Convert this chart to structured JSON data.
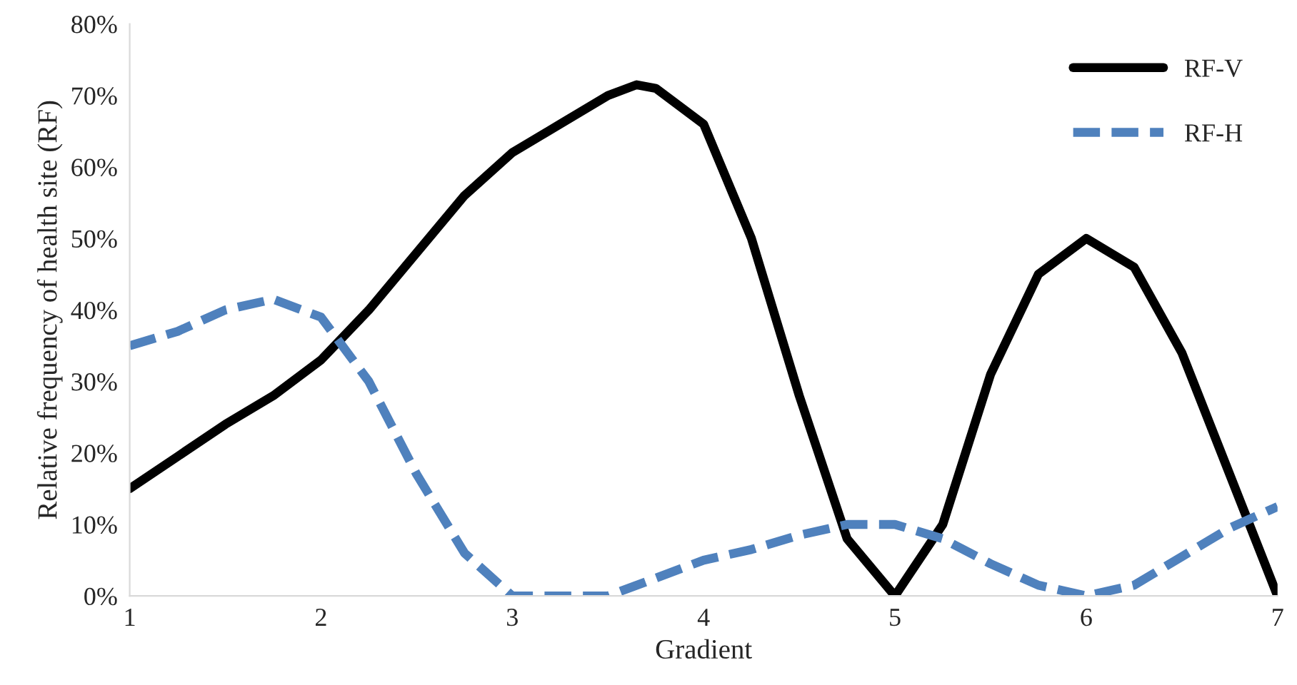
{
  "chart_data": {
    "type": "line",
    "xlabel": "Gradient",
    "ylabel": "Relative frequency of health site (RF)",
    "xlim": [
      1,
      7
    ],
    "xticks": [
      1,
      2,
      3,
      4,
      5,
      6,
      7
    ],
    "ylim": [
      0,
      80
    ],
    "yticks": [
      {
        "value": 0,
        "label": "0%"
      },
      {
        "value": 10,
        "label": "10%"
      },
      {
        "value": 20,
        "label": "20%"
      },
      {
        "value": 30,
        "label": "30%"
      },
      {
        "value": 40,
        "label": "40%"
      },
      {
        "value": 50,
        "label": "50%"
      },
      {
        "value": 60,
        "label": "60%"
      },
      {
        "value": 70,
        "label": "70%"
      },
      {
        "value": 80,
        "label": "80%"
      }
    ],
    "grid": false,
    "legend": "top right",
    "marker": "none",
    "series": [
      {
        "name": "RF-V",
        "color": "#000000",
        "line_style": "solid",
        "x": [
          1,
          1.25,
          1.5,
          1.75,
          2,
          2.25,
          2.5,
          2.75,
          3,
          3.25,
          3.5,
          3.65,
          3.75,
          4,
          4.25,
          4.5,
          4.75,
          5,
          5.25,
          5.5,
          5.75,
          6,
          6.25,
          6.5,
          6.75,
          7
        ],
        "values": [
          15,
          19.5,
          24,
          28,
          33,
          40,
          48,
          56,
          62,
          66,
          70,
          71.5,
          71,
          66,
          50,
          28,
          8,
          0,
          10,
          31,
          45,
          50,
          46,
          34,
          17,
          0
        ]
      },
      {
        "name": "RF-H",
        "color": "#4f81bd",
        "line_style": "dashed",
        "x": [
          1,
          1.25,
          1.5,
          1.75,
          2,
          2.25,
          2.5,
          2.75,
          3,
          3.25,
          3.5,
          3.75,
          4,
          4.25,
          4.5,
          4.75,
          5,
          5.25,
          5.5,
          5.75,
          6,
          6.25,
          6.5,
          6.75,
          7
        ],
        "values": [
          35,
          37,
          40,
          41.5,
          39,
          30,
          17,
          6,
          0,
          0,
          0,
          2.5,
          5,
          6.5,
          8.5,
          10,
          10,
          8,
          4.5,
          1.5,
          0,
          1.5,
          5.5,
          9.5,
          12.5
        ]
      }
    ]
  }
}
